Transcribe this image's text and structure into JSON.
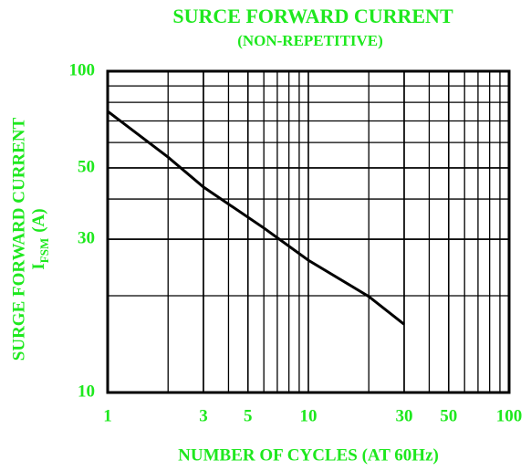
{
  "chart_data": {
    "type": "line",
    "title": "SURCE FORWARD CURRENT",
    "subtitle": "(NON-REPETITIVE)",
    "ylabel": "SURGE FORWARD CURRENT",
    "ylabel2": {
      "symbol": "I",
      "subscript": "FSM",
      "unit": "(A)"
    },
    "xlabel": "NUMBER OF CYCLES (AT 60Hz)",
    "x": [
      1,
      2,
      3,
      6,
      10,
      20,
      30
    ],
    "series": [
      {
        "name": "IFSM",
        "color": "#000000",
        "values": [
          75,
          54,
          43.6,
          32.5,
          25.8,
          19.9,
          16.3
        ]
      }
    ],
    "xlim": [
      1,
      100
    ],
    "ylim": [
      10,
      100
    ],
    "xticks": [
      1,
      3,
      5,
      10,
      30,
      50,
      100
    ],
    "yticks": [
      10,
      30,
      50,
      100
    ],
    "xscale": "log",
    "yscale": "log",
    "grid": "minor",
    "text_color": "#1ee81e"
  }
}
